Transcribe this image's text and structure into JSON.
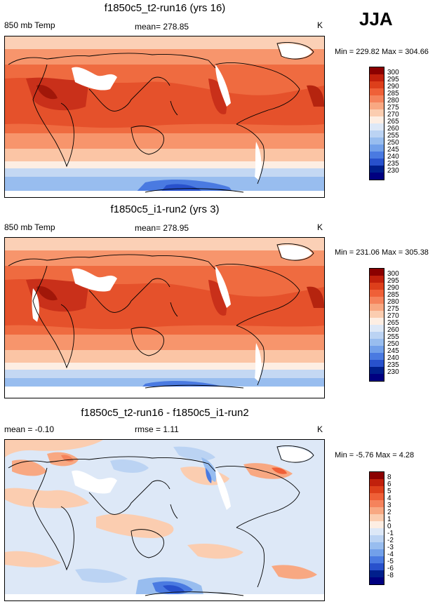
{
  "season": "JJA",
  "panels": [
    {
      "id": "p1",
      "title": "f1850c5_t2-run16 (yrs 16)",
      "left_label": "850 mb Temp",
      "center_label": "mean= 278.85",
      "units": "K",
      "minmax": "Min = 229.82 Max = 304.66",
      "levels": [
        "300",
        "295",
        "290",
        "285",
        "280",
        "275",
        "270",
        "265",
        "260",
        "255",
        "250",
        "245",
        "240",
        "235",
        "230"
      ],
      "colors": [
        "#8b0000",
        "#c1200c",
        "#dd3f1b",
        "#ef6038",
        "#f5835c",
        "#f8a882",
        "#fbcdb0",
        "#fdeee3",
        "#dde8f7",
        "#bbd3f3",
        "#98bdef",
        "#72a0ea",
        "#4a7ae1",
        "#2851cc",
        "#001f8c",
        "#000080"
      ]
    },
    {
      "id": "p2",
      "title": "f1850c5_i1-run2 (yrs 3)",
      "left_label": "850 mb Temp",
      "center_label": "mean= 278.95",
      "units": "K",
      "minmax": "Min = 231.06 Max = 305.38",
      "levels": [
        "300",
        "295",
        "290",
        "285",
        "280",
        "275",
        "270",
        "265",
        "260",
        "255",
        "250",
        "245",
        "240",
        "235",
        "230"
      ],
      "colors": [
        "#8b0000",
        "#c1200c",
        "#dd3f1b",
        "#ef6038",
        "#f5835c",
        "#f8a882",
        "#fbcdb0",
        "#fdeee3",
        "#dde8f7",
        "#bbd3f3",
        "#98bdef",
        "#72a0ea",
        "#4a7ae1",
        "#2851cc",
        "#001f8c",
        "#000080"
      ]
    },
    {
      "id": "p3",
      "title": "f1850c5_t2-run16 - f1850c5_i1-run2",
      "left_label": "mean =  -0.10",
      "center_label": "rmse =   1.11",
      "units": "K",
      "minmax": "Min =  -5.76 Max =   4.28",
      "levels": [
        "8",
        "6",
        "5",
        "4",
        "3",
        "2",
        "1",
        "0",
        "-1",
        "-2",
        "-3",
        "-4",
        "-5",
        "-6",
        "-8"
      ],
      "colors": [
        "#8b0000",
        "#c1200c",
        "#dd3f1b",
        "#ef6038",
        "#f5835c",
        "#f8a882",
        "#fbcdb0",
        "#fdeee3",
        "#dde8f7",
        "#bbd3f3",
        "#98bdef",
        "#72a0ea",
        "#4a7ae1",
        "#2851cc",
        "#001f8c",
        "#000080"
      ]
    }
  ]
}
